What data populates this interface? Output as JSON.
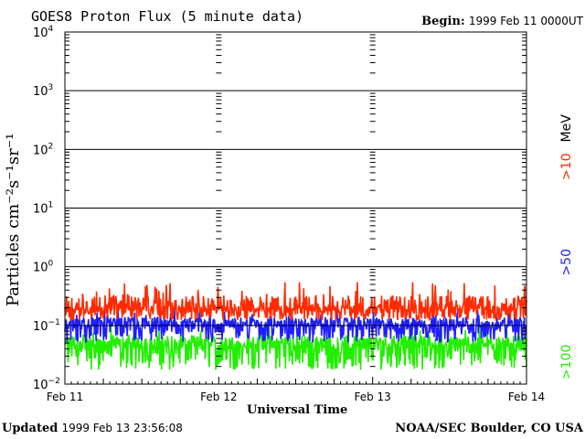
{
  "header": {
    "title": "GOES8 Proton Flux (5 minute data)",
    "begin_label": "Begin:",
    "begin_value": "1999 Feb 11 0000UT"
  },
  "footer": {
    "updated_label": "Updated",
    "updated_value": "1999 Feb 13 23:56:08",
    "organization": "NOAA/SEC Boulder, CO USA"
  },
  "chart_data": {
    "type": "line",
    "title": "GOES8 Proton Flux (5 minute data)",
    "xlabel": "Universal Time",
    "ylabel": "Particles cm⁻²s⁻¹sr⁻¹",
    "yscale": "log",
    "ylim": [
      0.01,
      10000
    ],
    "ytick_exponents": [
      "4",
      "3",
      "2",
      "1",
      "0",
      "-1",
      "-2"
    ],
    "xticks": [
      "Feb 11",
      "Feb 12",
      "Feb 13",
      "Feb 14"
    ],
    "xlim_days": [
      11,
      14
    ],
    "grid": "horizontal decades",
    "energy_unit": "MeV",
    "series": [
      {
        "name": ">10",
        "color": "#ff2a00",
        "approx_level": 0.17,
        "min": 0.12,
        "max": 0.55
      },
      {
        "name": ">50",
        "color": "#1e1eff",
        "approx_level": 0.09,
        "min": 0.05,
        "max": 0.2
      },
      {
        "name": ">100",
        "color": "#22ee00",
        "approx_level": 0.04,
        "min": 0.017,
        "max": 0.1
      }
    ]
  }
}
